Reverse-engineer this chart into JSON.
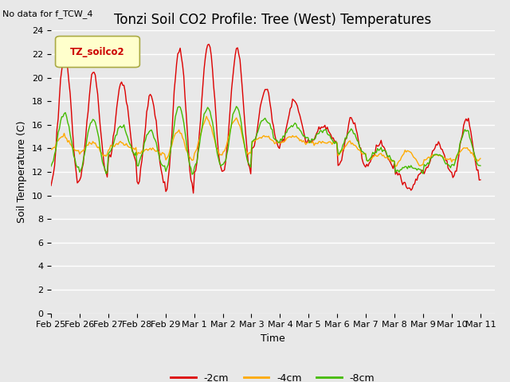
{
  "title": "Tonzi Soil CO2 Profile: Tree (West) Temperatures",
  "subtitle": "No data for f_TCW_4",
  "ylabel": "Soil Temperature (C)",
  "xlabel": "Time",
  "legend_label": "TZ_soilco2",
  "ylim": [
    0,
    24
  ],
  "yticks": [
    0,
    2,
    4,
    6,
    8,
    10,
    12,
    14,
    16,
    18,
    20,
    22,
    24
  ],
  "xtick_labels": [
    "Feb 25",
    "Feb 26",
    "Feb 27",
    "Feb 28",
    "Feb 29",
    "Mar 1",
    "Mar 2",
    "Mar 3",
    "Mar 4",
    "Mar 5",
    "Mar 6",
    "Mar 7",
    "Mar 8",
    "Mar 9",
    "Mar 10",
    "Mar 11"
  ],
  "line_colors": {
    "2cm": "#dd0000",
    "4cm": "#ffaa00",
    "8cm": "#44bb00"
  },
  "bg_color": "#e8e8e8",
  "plot_bg_color": "#e8e8e8",
  "grid_color": "#ffffff",
  "legend_box_facecolor": "#ffffcc",
  "legend_box_edgecolor": "#aaaa44",
  "legend_text_color": "#cc0000",
  "title_fontsize": 12,
  "axis_fontsize": 9,
  "tick_fontsize": 8
}
